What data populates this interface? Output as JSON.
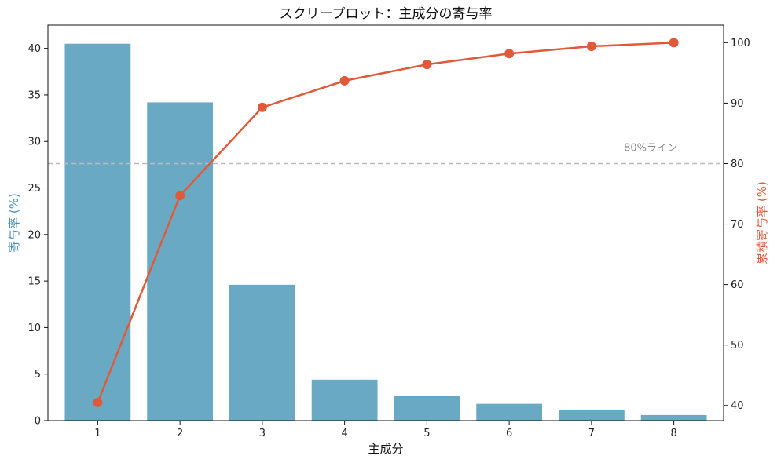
{
  "chart_data": {
    "type": "bar+line",
    "title": "スクリープロット：主成分の寄与率",
    "xlabel": "主成分",
    "categories": [
      "1",
      "2",
      "3",
      "4",
      "5",
      "6",
      "7",
      "8"
    ],
    "bar_series": {
      "name": "寄与率 (%)",
      "values": [
        40.5,
        34.2,
        14.6,
        4.4,
        2.7,
        1.8,
        1.1,
        0.6
      ],
      "color": "#6aa9c4"
    },
    "line_series": {
      "name": "累積寄与率 (%)",
      "values": [
        40.5,
        74.7,
        89.3,
        93.7,
        96.4,
        98.2,
        99.4,
        100.0
      ],
      "color": "#e05a3a"
    },
    "y_left": {
      "label": "寄与率 (%)",
      "ylim": [
        0,
        42.5
      ],
      "ticks": [
        0,
        5,
        10,
        15,
        20,
        25,
        30,
        35,
        40
      ],
      "color": "#4a90b8"
    },
    "y_right": {
      "label": "累積寄与率 (%)",
      "ylim": [
        37.5,
        102.9
      ],
      "ticks": [
        40,
        50,
        60,
        70,
        80,
        90,
        100
      ],
      "color": "#e05a3a"
    },
    "reference_line": {
      "value": 80,
      "axis": "right",
      "label": "80%ライン",
      "style": "dashed",
      "color": "#bbbbbb"
    },
    "grid": false
  }
}
